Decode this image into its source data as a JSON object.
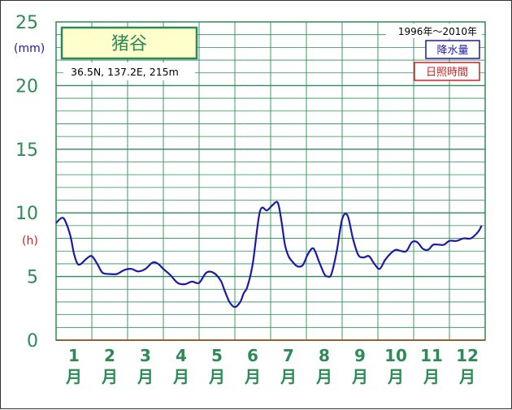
{
  "chart_data": {
    "type": "line",
    "title": "猪谷",
    "location": "36.5N,  137.2E,  215m",
    "period": "1996年～2010年",
    "y_unit_primary": "(mm)",
    "y_unit_secondary": "(h)",
    "ylim": [
      0,
      25
    ],
    "y_ticks": [
      "0",
      "5",
      "10",
      "15",
      "20",
      "25"
    ],
    "months": [
      {
        "num": "1",
        "kanji": "月"
      },
      {
        "num": "2",
        "kanji": "月"
      },
      {
        "num": "3",
        "kanji": "月"
      },
      {
        "num": "4",
        "kanji": "月"
      },
      {
        "num": "5",
        "kanji": "月"
      },
      {
        "num": "6",
        "kanji": "月"
      },
      {
        "num": "7",
        "kanji": "月"
      },
      {
        "num": "8",
        "kanji": "月"
      },
      {
        "num": "9",
        "kanji": "月"
      },
      {
        "num": "10",
        "kanji": "月"
      },
      {
        "num": "11",
        "kanji": "月"
      },
      {
        "num": "12",
        "kanji": "月"
      }
    ],
    "legend": [
      {
        "label": "降水量",
        "color": "#1a1aa6"
      },
      {
        "label": "日照時間",
        "color": "#cc2222"
      }
    ],
    "grid": true,
    "series": [
      {
        "name": "降水量",
        "color": "#1a1aa6",
        "x": [
          0.0,
          0.15,
          0.25,
          0.4,
          0.5,
          0.6,
          0.7,
          0.85,
          1.0,
          1.15,
          1.3,
          1.5,
          1.7,
          1.9,
          2.1,
          2.3,
          2.5,
          2.7,
          2.85,
          3.0,
          3.2,
          3.4,
          3.6,
          3.8,
          4.0,
          4.2,
          4.4,
          4.6,
          4.7,
          4.85,
          5.0,
          5.15,
          5.25,
          5.35,
          5.5,
          5.7,
          5.9,
          6.05,
          6.2,
          6.3,
          6.4,
          6.5,
          6.6,
          6.75,
          6.9,
          7.05,
          7.2,
          7.35,
          7.5,
          7.6,
          7.7,
          7.85,
          8.0,
          8.15,
          8.3,
          8.45,
          8.6,
          8.75,
          8.9,
          9.05,
          9.2,
          9.35,
          9.5,
          9.65,
          9.8,
          9.95,
          10.1,
          10.25,
          10.4,
          10.55,
          10.7,
          10.85,
          11.0,
          11.2,
          11.4,
          11.6,
          11.8,
          11.9
        ],
        "y": [
          9.2,
          9.6,
          9.4,
          8.2,
          6.8,
          6.0,
          6.0,
          6.4,
          6.6,
          6.0,
          5.3,
          5.2,
          5.2,
          5.5,
          5.6,
          5.4,
          5.6,
          6.1,
          6.0,
          5.6,
          5.1,
          4.5,
          4.4,
          4.6,
          4.5,
          5.3,
          5.3,
          4.7,
          4.0,
          3.0,
          2.6,
          3.0,
          3.7,
          4.2,
          6.0,
          10.1,
          10.2,
          10.6,
          10.8,
          9.4,
          7.5,
          6.6,
          6.2,
          5.8,
          5.9,
          6.8,
          7.2,
          6.2,
          5.2,
          5.0,
          5.2,
          7.0,
          9.5,
          9.8,
          8.0,
          6.7,
          6.5,
          6.6,
          6.0,
          5.6,
          6.3,
          6.8,
          7.1,
          7.0,
          7.0,
          7.7,
          7.7,
          7.2,
          7.1,
          7.5,
          7.5,
          7.5,
          7.8,
          7.8,
          8.0,
          8.0,
          8.5,
          9.0
        ]
      }
    ]
  }
}
